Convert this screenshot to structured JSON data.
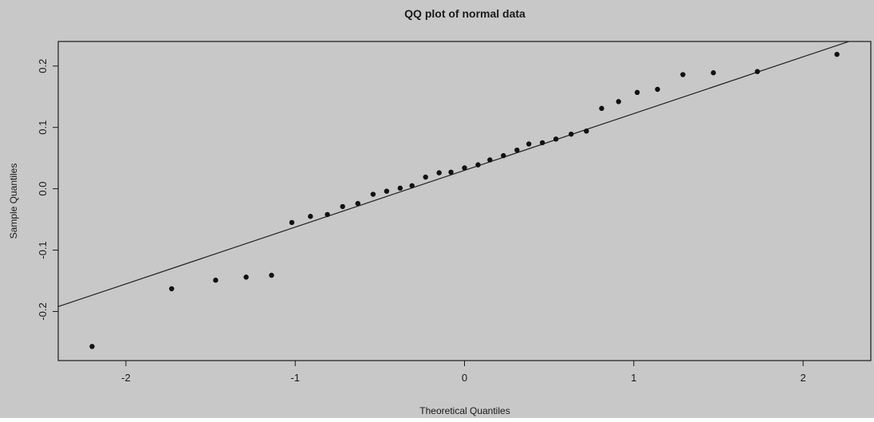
{
  "colors": {
    "background": "#c8c8c8",
    "plot_background": "#c8c8c8",
    "frame": "#1a1a1a",
    "points": "#111111",
    "reference_line": "#222222"
  },
  "chart_data": {
    "type": "scatter",
    "title": "QQ plot of normal data",
    "xlabel": "Theoretical Quantiles",
    "ylabel": "Sample Quantiles",
    "xlim": [
      -2.4,
      2.4
    ],
    "ylim": [
      -0.28,
      0.24
    ],
    "xticks": [
      -2,
      -1,
      0,
      1,
      2
    ],
    "xtick_labels": [
      "-2",
      "-1",
      "0",
      "1",
      "2"
    ],
    "yticks": [
      -0.2,
      -0.1,
      0.0,
      0.1,
      0.2
    ],
    "ytick_labels": [
      "-0.2",
      "-0.1",
      "0.0",
      "0.1",
      "0.2"
    ],
    "grid": false,
    "legend": "none",
    "points": [
      {
        "x": -2.2,
        "y": -0.257
      },
      {
        "x": -1.73,
        "y": -0.163
      },
      {
        "x": -1.47,
        "y": -0.149
      },
      {
        "x": -1.29,
        "y": -0.144
      },
      {
        "x": -1.14,
        "y": -0.141
      },
      {
        "x": -1.02,
        "y": -0.055
      },
      {
        "x": -0.91,
        "y": -0.045
      },
      {
        "x": -0.81,
        "y": -0.042
      },
      {
        "x": -0.72,
        "y": -0.029
      },
      {
        "x": -0.63,
        "y": -0.024
      },
      {
        "x": -0.54,
        "y": -0.009
      },
      {
        "x": -0.46,
        "y": -0.004
      },
      {
        "x": -0.38,
        "y": 0.001
      },
      {
        "x": -0.31,
        "y": 0.005
      },
      {
        "x": -0.23,
        "y": 0.019
      },
      {
        "x": -0.15,
        "y": 0.026
      },
      {
        "x": -0.08,
        "y": 0.027
      },
      {
        "x": 0.0,
        "y": 0.034
      },
      {
        "x": 0.08,
        "y": 0.039
      },
      {
        "x": 0.15,
        "y": 0.047
      },
      {
        "x": 0.23,
        "y": 0.054
      },
      {
        "x": 0.31,
        "y": 0.063
      },
      {
        "x": 0.38,
        "y": 0.073
      },
      {
        "x": 0.46,
        "y": 0.075
      },
      {
        "x": 0.54,
        "y": 0.081
      },
      {
        "x": 0.63,
        "y": 0.089
      },
      {
        "x": 0.72,
        "y": 0.094
      },
      {
        "x": 0.81,
        "y": 0.131
      },
      {
        "x": 0.91,
        "y": 0.142
      },
      {
        "x": 1.02,
        "y": 0.157
      },
      {
        "x": 1.14,
        "y": 0.162
      },
      {
        "x": 1.29,
        "y": 0.186
      },
      {
        "x": 1.47,
        "y": 0.189
      },
      {
        "x": 1.73,
        "y": 0.191
      },
      {
        "x": 2.2,
        "y": 0.219
      }
    ],
    "reference_line": {
      "intercept": 0.03,
      "slope": 0.0925
    }
  }
}
